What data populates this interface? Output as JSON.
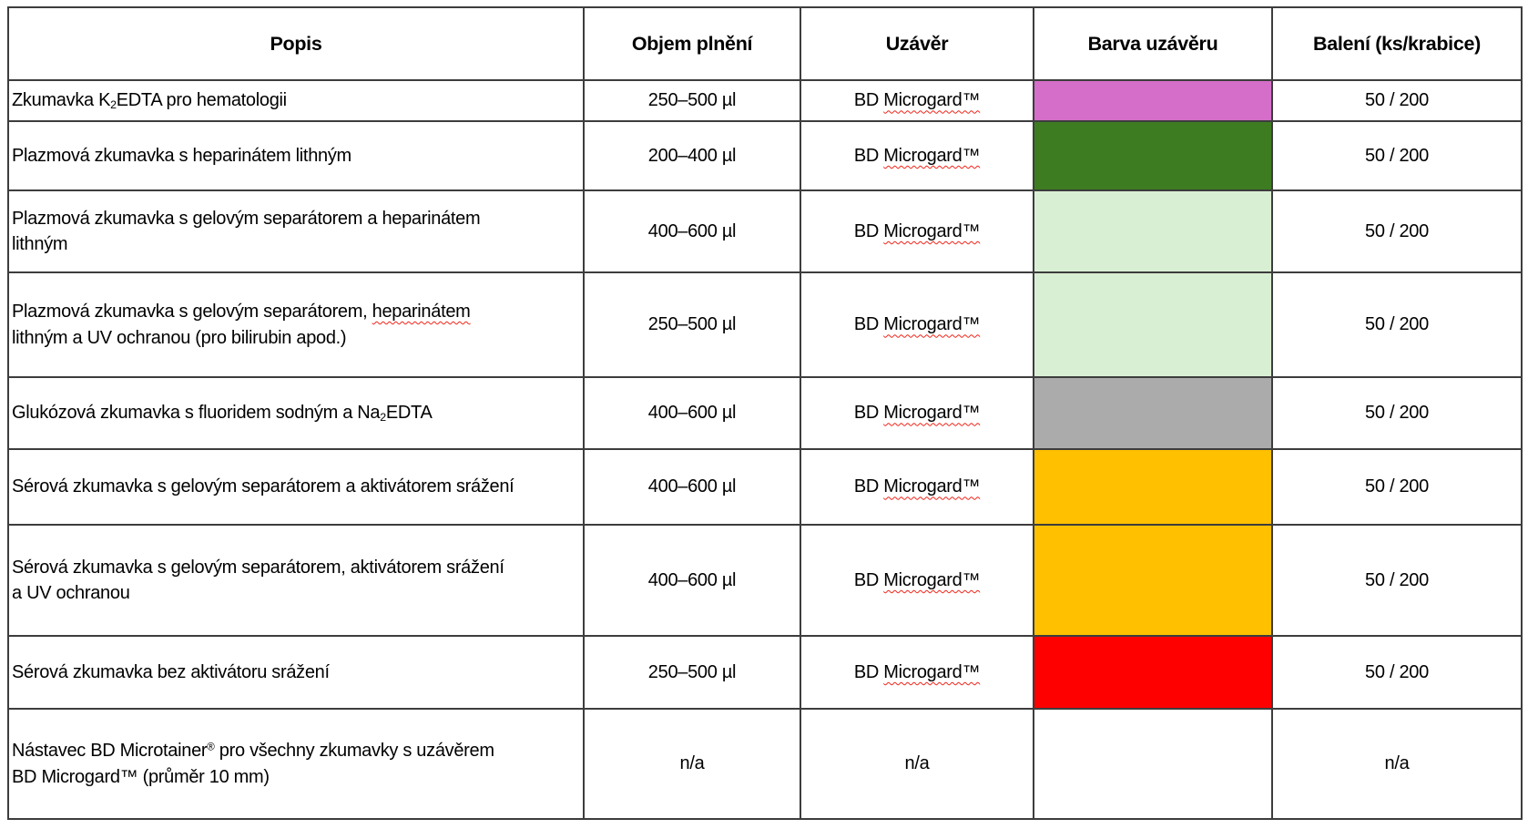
{
  "table": {
    "spell_underline_color": "#EE2418",
    "headers": [
      {
        "label": "Popis"
      },
      {
        "label": "Objem plnění"
      },
      {
        "label": "Uzávěr"
      },
      {
        "label": "Barva uzávěru"
      },
      {
        "label": "Balení (ks/krabice)"
      }
    ],
    "rows": [
      {
        "popis": [
          {
            "t": "Zkumavka K"
          },
          {
            "t": "2",
            "style": "sub"
          },
          {
            "t": "EDTA pro hematologii"
          }
        ],
        "objem": "250–500 µl",
        "uzaver": [
          {
            "t": "BD "
          },
          {
            "t": "Microgard™",
            "style": "spell"
          }
        ],
        "cap_color": {
          "hex": "#D46EC8",
          "name": "magenta"
        },
        "baleni": "50 / 200"
      },
      {
        "popis": [
          {
            "t": "Plazmová zkumavka s heparinátem lithným"
          }
        ],
        "objem": "200–400 µl",
        "uzaver": [
          {
            "t": "BD "
          },
          {
            "t": "Microgard™",
            "style": "spell"
          }
        ],
        "cap_color": {
          "hex": "#3E7C22",
          "name": "dark-green"
        },
        "baleni": "50 / 200"
      },
      {
        "popis": [
          {
            "t": "Plazmová zkumavka s gelovým separátorem a heparinátem"
          },
          {
            "br": true
          },
          {
            "t": "lithným"
          }
        ],
        "objem": "400–600 µl",
        "uzaver": [
          {
            "t": "BD "
          },
          {
            "t": "Microgard™",
            "style": "spell"
          }
        ],
        "cap_color": {
          "hex": "#D9EFD3",
          "name": "light-green"
        },
        "baleni": "50 / 200"
      },
      {
        "popis": [
          {
            "t": "Plazmová zkumavka s gelovým separátorem, "
          },
          {
            "t": "heparinátem",
            "style": "spell"
          },
          {
            "br": true
          },
          {
            "t": "lithným a UV ochranou (pro bilirubin apod.)"
          }
        ],
        "objem": "250–500 µl",
        "uzaver": [
          {
            "t": "BD "
          },
          {
            "t": "Microgard™",
            "style": "spell"
          }
        ],
        "cap_color": {
          "hex": "#D9EFD3",
          "name": "light-green"
        },
        "baleni": "50 / 200"
      },
      {
        "popis": [
          {
            "t": "Glukózová zkumavka s fluoridem sodným a Na"
          },
          {
            "t": "2",
            "style": "sub"
          },
          {
            "t": "EDTA"
          }
        ],
        "objem": "400–600 µl",
        "uzaver": [
          {
            "t": "BD "
          },
          {
            "t": "Microgard™",
            "style": "spell"
          }
        ],
        "cap_color": {
          "hex": "#ABABAB",
          "name": "gray"
        },
        "baleni": "50 / 200"
      },
      {
        "popis": [
          {
            "t": "Sérová zkumavka s gelovým separátorem a aktivátorem srážení"
          }
        ],
        "objem": "400–600 µl",
        "uzaver": [
          {
            "t": "BD "
          },
          {
            "t": "Microgard™",
            "style": "spell"
          }
        ],
        "cap_color": {
          "hex": "#FFC000",
          "name": "orange"
        },
        "baleni": "50 / 200"
      },
      {
        "popis": [
          {
            "t": "Sérová zkumavka s gelovým separátorem, aktivátorem srážení"
          },
          {
            "br": true
          },
          {
            "t": "a UV ochranou"
          }
        ],
        "objem": "400–600 µl",
        "uzaver": [
          {
            "t": "BD "
          },
          {
            "t": "Microgard™",
            "style": "spell"
          }
        ],
        "cap_color": {
          "hex": "#FFC000",
          "name": "orange"
        },
        "baleni": "50 / 200"
      },
      {
        "popis": [
          {
            "t": "Sérová zkumavka bez aktivátoru srážení"
          }
        ],
        "objem": "250–500 µl",
        "uzaver": [
          {
            "t": "BD "
          },
          {
            "t": "Microgard™",
            "style": "spell"
          }
        ],
        "cap_color": {
          "hex": "#FF0000",
          "name": "red"
        },
        "baleni": "50 / 200"
      },
      {
        "popis": [
          {
            "t": "Nástavec BD Microtainer"
          },
          {
            "t": "®",
            "style": "sup"
          },
          {
            "t": " pro všechny zkumavky s uzávěrem"
          },
          {
            "br": true
          },
          {
            "t": "BD Microgard™ (průměr 10 mm)"
          }
        ],
        "objem": "n/a",
        "uzaver": [
          {
            "t": "n/a"
          }
        ],
        "cap_color": null,
        "baleni": "n/a"
      }
    ]
  }
}
